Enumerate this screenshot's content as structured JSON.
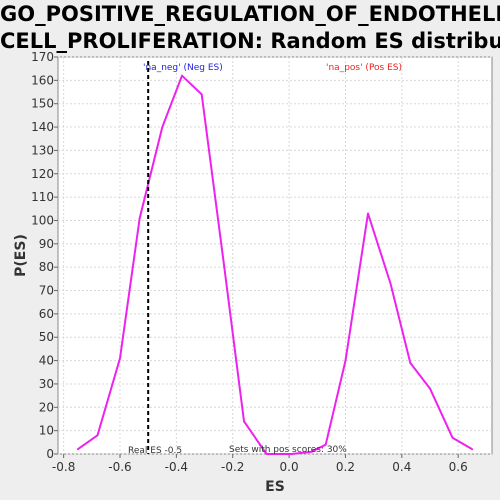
{
  "title_line1": "GO_POSITIVE_REGULATION_OF_ENDOTHELIAL_",
  "title_line2": "CELL_PROLIFERATION: Random ES distribution",
  "chart_data": {
    "type": "line",
    "title": "GO_POSITIVE_REGULATION_OF_ENDOTHELIAL_CELL_PROLIFERATION: Random ES distribution",
    "xlabel": "ES",
    "ylabel": "P(ES)",
    "xlim": [
      -0.82,
      0.72
    ],
    "ylim": [
      0,
      170
    ],
    "xticks": [
      -0.8,
      -0.6,
      -0.4,
      -0.2,
      0.0,
      0.2,
      0.4,
      0.6
    ],
    "xtick_labels": [
      "-0.8",
      "-0.6",
      "-0.4",
      "-0.2",
      "0.0",
      "0.2",
      "0.4",
      "0.6"
    ],
    "yticks": [
      0,
      10,
      20,
      30,
      40,
      50,
      60,
      70,
      80,
      90,
      100,
      110,
      120,
      130,
      140,
      150,
      160,
      170
    ],
    "ytick_labels": [
      "0",
      "10",
      "20",
      "30",
      "40",
      "50",
      "60",
      "70",
      "80",
      "90",
      "100",
      "110",
      "120",
      "130",
      "140",
      "150",
      "160",
      "170"
    ],
    "grid": true,
    "series": [
      {
        "color": "#ee22ee",
        "x": [
          -0.75,
          -0.68,
          -0.6,
          -0.53,
          -0.45,
          -0.38,
          -0.31,
          -0.23,
          -0.16,
          -0.08,
          0.01,
          0.08,
          0.13,
          0.2,
          0.28,
          0.36,
          0.43,
          0.5,
          0.58,
          0.65
        ],
        "y": [
          2,
          8,
          41,
          101,
          140,
          162,
          154,
          80,
          14,
          0,
          0,
          1,
          4,
          40,
          103,
          73,
          39,
          28,
          7,
          2
        ]
      }
    ],
    "real_es": -0.5,
    "annotations": {
      "neg_legend": "'na_neg' (Neg ES)",
      "pos_legend": "'na_pos' (Pos ES)",
      "real_es_label": "Real ES -0.5",
      "pos_scores_label": "Sets with pos scores: 30%"
    },
    "colors": {
      "line": "#ee22ee",
      "neg_legend": "#2222dd",
      "pos_legend": "#ee2222",
      "grid": "#d8d8d8",
      "plot_bg": "#ffffff"
    }
  }
}
